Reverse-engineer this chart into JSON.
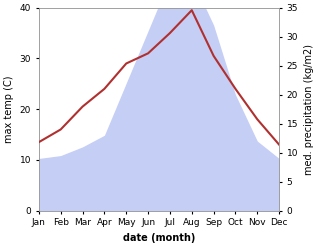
{
  "months": [
    "Jan",
    "Feb",
    "Mar",
    "Apr",
    "May",
    "Jun",
    "Jul",
    "Aug",
    "Sep",
    "Oct",
    "Nov",
    "Dec"
  ],
  "temp": [
    13.5,
    16.0,
    20.5,
    24.0,
    29.0,
    31.0,
    35.0,
    39.5,
    30.5,
    24.0,
    18.0,
    13.0
  ],
  "precip": [
    9.0,
    9.5,
    11.0,
    13.0,
    22.0,
    31.0,
    40.0,
    40.0,
    32.0,
    20.0,
    12.0,
    9.0
  ],
  "temp_color": "#b03030",
  "precip_fill_color": "#c5cef5",
  "temp_ylim": [
    0,
    40
  ],
  "precip_ylim": [
    0,
    35
  ],
  "ylabel_left": "max temp (C)",
  "ylabel_right": "med. precipitation (kg/m2)",
  "xlabel": "date (month)",
  "bg_color": "#ffffff",
  "spine_color": "#999999",
  "label_fontsize": 7,
  "tick_fontsize": 6.5
}
